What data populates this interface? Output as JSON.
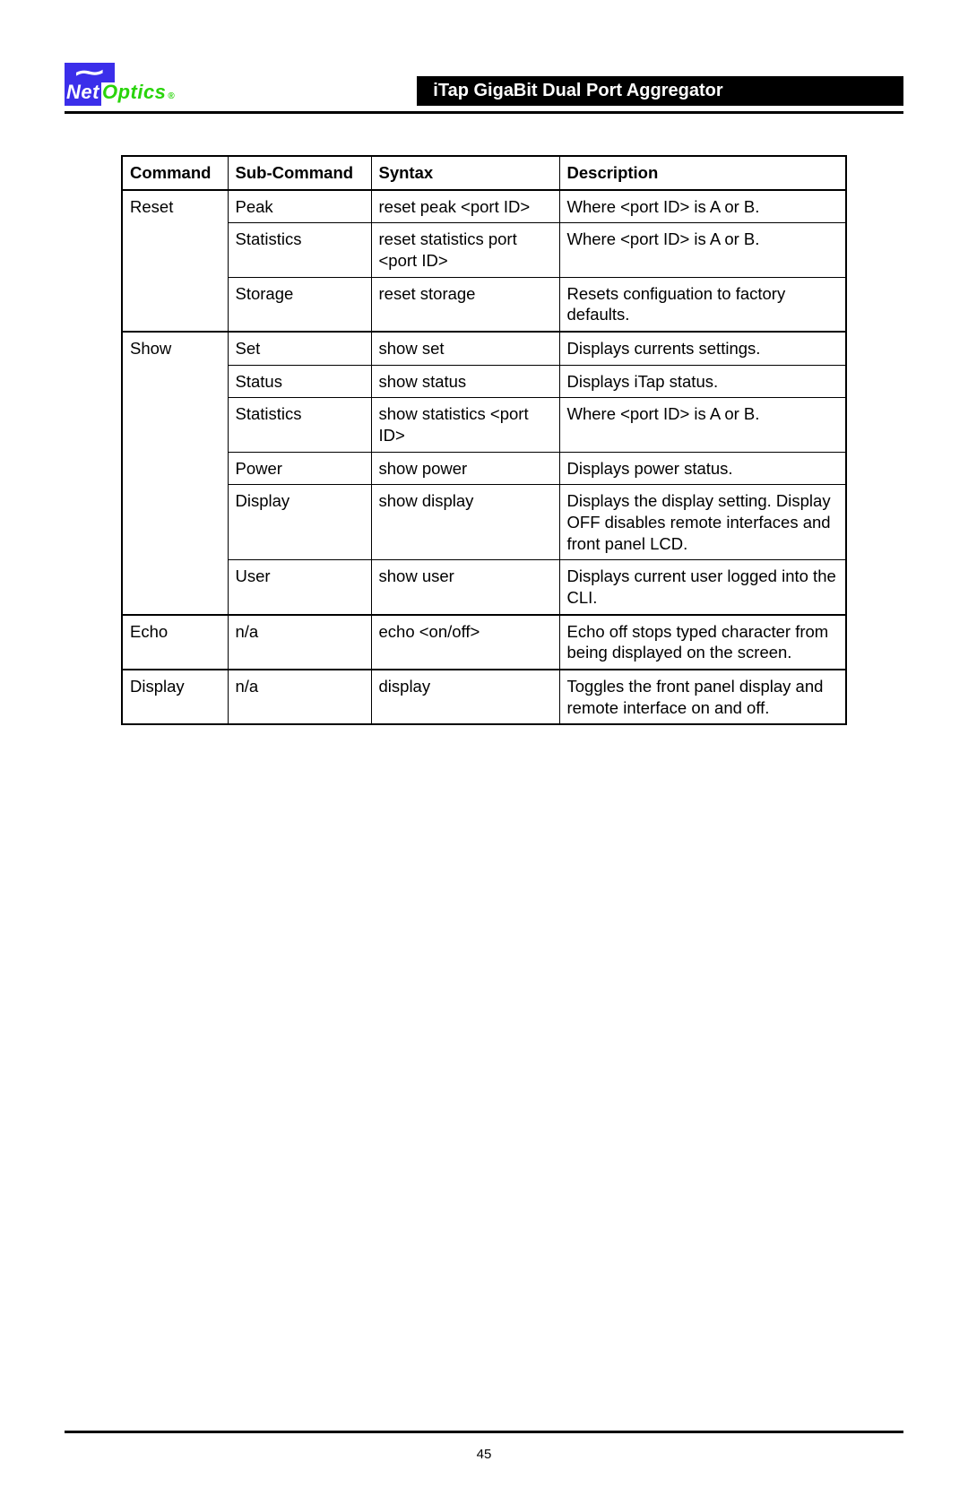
{
  "logo": {
    "net": "Net",
    "optics": "Optics",
    "registered": "®"
  },
  "header": {
    "title": "iTap GigaBit Dual Port Aggregator"
  },
  "table": {
    "columns": [
      "Command",
      "Sub-Command",
      "Syntax",
      "Description"
    ],
    "groups": [
      {
        "command": "Reset",
        "rows": [
          {
            "sub": "Peak",
            "syntax": "reset peak <port ID>",
            "desc": "Where <port ID> is A or B."
          },
          {
            "sub": "Statistics",
            "syntax": "reset statistics port <port ID>",
            "desc": "Where <port ID> is A or B."
          },
          {
            "sub": "Storage",
            "syntax": "reset storage",
            "desc": "Resets configuation to factory defaults."
          }
        ]
      },
      {
        "command": "Show",
        "rows": [
          {
            "sub": "Set",
            "syntax": "show set",
            "desc": "Displays currents settings."
          },
          {
            "sub": "Status",
            "syntax": "show status",
            "desc": "Displays iTap status."
          },
          {
            "sub": "Statistics",
            "syntax": "show statistics <port ID>",
            "desc": "Where <port ID> is A or B."
          },
          {
            "sub": "Power",
            "syntax": "show power",
            "desc": "Displays power status."
          },
          {
            "sub": "Display",
            "syntax": "show display",
            "desc": "Displays the display setting. Display OFF disables remote interfaces and front panel LCD."
          },
          {
            "sub": "User",
            "syntax": "show user",
            "desc": "Displays current user logged into the CLI."
          }
        ]
      },
      {
        "command": "Echo",
        "rows": [
          {
            "sub": "n/a",
            "syntax": "echo <on/off>",
            "desc": "Echo off stops typed character from being displayed  on the screen."
          }
        ]
      },
      {
        "command": "Display",
        "rows": [
          {
            "sub": "n/a",
            "syntax": "display",
            "desc": "Toggles the front panel display and remote interface on and off."
          }
        ]
      }
    ],
    "border_color": "#000000",
    "background_color": "#ffffff",
    "font_size_pt": 14
  },
  "footer": {
    "page_number": "45"
  }
}
